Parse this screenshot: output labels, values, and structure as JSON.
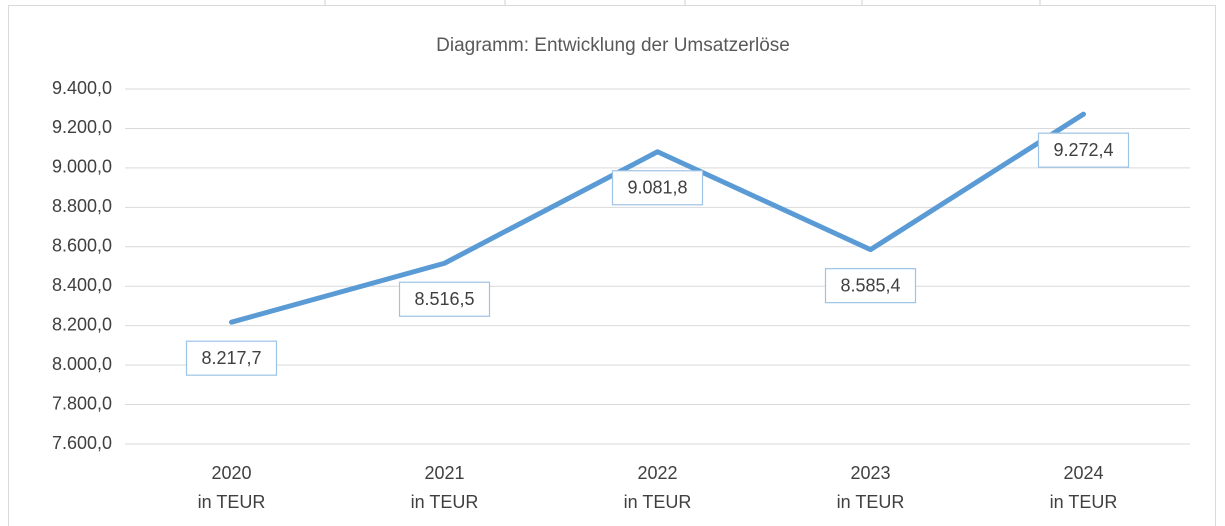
{
  "chart_data": {
    "type": "line",
    "title": "Diagramm: Entwicklung der Umsatzerlöse",
    "categories": [
      "2020\nin TEUR",
      "2021\nin TEUR",
      "2022\nin TEUR",
      "2023\nin TEUR",
      "2024\nin TEUR"
    ],
    "values": [
      8217.7,
      8516.5,
      9081.8,
      8585.4,
      9272.4
    ],
    "value_labels": [
      "8.217,7",
      "8.516,5",
      "9.081,8",
      "8.585,4",
      "9.272,4"
    ],
    "color": "#5b9bd5",
    "ylim": [
      7600,
      9400
    ],
    "yticks": [
      {
        "value": 7600,
        "label": "7.600,0"
      },
      {
        "value": 7800,
        "label": "7.800,0"
      },
      {
        "value": 8000,
        "label": "8.000,0"
      },
      {
        "value": 8200,
        "label": "8.200,0"
      },
      {
        "value": 8400,
        "label": "8.400,0"
      },
      {
        "value": 8600,
        "label": "8.600,0"
      },
      {
        "value": 8800,
        "label": "8.800,0"
      },
      {
        "value": 9000,
        "label": "9.000,0"
      },
      {
        "value": 9200,
        "label": "9.200,0"
      },
      {
        "value": 9400,
        "label": "9.400,0"
      }
    ],
    "grid": true
  }
}
